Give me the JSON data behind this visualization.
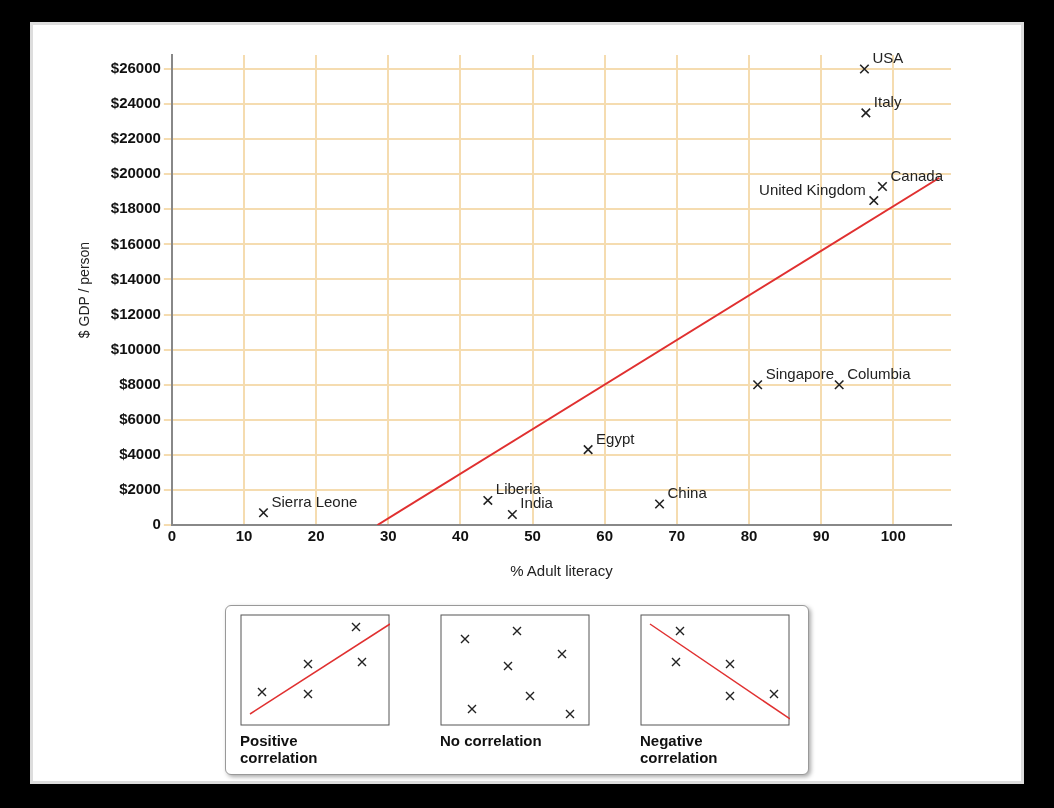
{
  "chart_data": {
    "type": "scatter",
    "xlabel": "% Adult literacy",
    "ylabel": "$ GDP / person",
    "xlim": [
      0,
      108
    ],
    "ylim": [
      0,
      26800
    ],
    "xticks": [
      0,
      10,
      20,
      30,
      40,
      50,
      60,
      70,
      80,
      90,
      100
    ],
    "yticks": [
      {
        "value": 0,
        "label": "0"
      },
      {
        "value": 2000,
        "label": "$2000"
      },
      {
        "value": 4000,
        "label": "$4000"
      },
      {
        "value": 6000,
        "label": "$6000"
      },
      {
        "value": 8000,
        "label": "$8000"
      },
      {
        "value": 10000,
        "label": "$10000"
      },
      {
        "value": 12000,
        "label": "$12000"
      },
      {
        "value": 14000,
        "label": "$14000"
      },
      {
        "value": 16000,
        "label": "$16000"
      },
      {
        "value": 18000,
        "label": "$18000"
      },
      {
        "value": 20000,
        "label": "$20000"
      },
      {
        "value": 22000,
        "label": "$22000"
      },
      {
        "value": 24000,
        "label": "$24000"
      },
      {
        "value": 26000,
        "label": "$26000"
      }
    ],
    "grid": true,
    "legend": false,
    "marker": "cross",
    "series": [
      {
        "type": "scatter",
        "color": "#222222",
        "x": [
          96,
          96.2,
          98.5,
          97.3,
          81.2,
          92.5,
          57.7,
          43.8,
          47.2,
          67.6,
          12.7
        ],
        "values": [
          26000,
          23500,
          19300,
          18500,
          8000,
          8000,
          4300,
          1400,
          600,
          1200,
          700
        ]
      },
      {
        "type": "line",
        "color": "#e03030",
        "marker": "none",
        "line_style": "solid",
        "x": [
          28.5,
          106.4
        ],
        "values": [
          0,
          19800
        ]
      }
    ],
    "annotations": [
      {
        "text": "USA",
        "x": 96,
        "y": 26000
      },
      {
        "text": "Italy",
        "x": 96.2,
        "y": 23500
      },
      {
        "text": "Canada",
        "x": 98.5,
        "y": 19300
      },
      {
        "text": "United Kingdom",
        "x": 97.3,
        "y": 18500
      },
      {
        "text": "Singapore",
        "x": 81.2,
        "y": 8000
      },
      {
        "text": "Columbia",
        "x": 92.5,
        "y": 8000
      },
      {
        "text": "Egypt",
        "x": 57.7,
        "y": 4300
      },
      {
        "text": "Liberia",
        "x": 43.8,
        "y": 1400
      },
      {
        "text": "India",
        "x": 47.2,
        "y": 600
      },
      {
        "text": "China",
        "x": 67.6,
        "y": 1200
      },
      {
        "text": "Sierra Leone",
        "x": 12.7,
        "y": 700
      },
      "Positive correlation",
      "No correlation",
      "Negative correlation"
    ]
  }
}
